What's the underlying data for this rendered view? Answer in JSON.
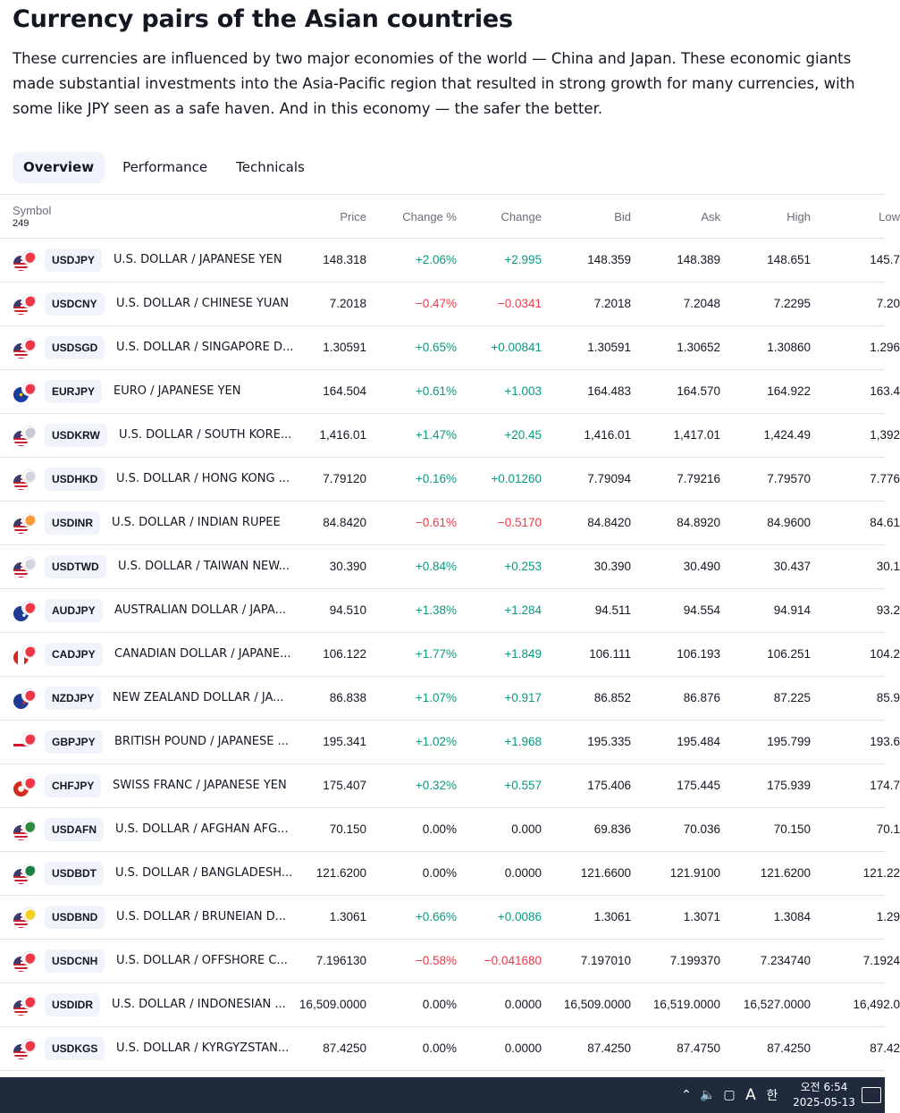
{
  "title": "Currency pairs of the Asian countries",
  "description": "These currencies are influenced by two major economies of the world — China and Japan. These economic giants made substantial investments into the Asia-Pacific region that resulted in strong growth for many currencies, with some like JPY seen as a safe haven. And in this economy — the safer the better.",
  "tabs": [
    "Overview",
    "Performance",
    "Technicals"
  ],
  "active_tab": "Overview",
  "table": {
    "symbol_header": "Symbol",
    "symbol_count": "249",
    "columns": [
      "Price",
      "Change %",
      "Change",
      "Bid",
      "Ask",
      "High",
      "Low"
    ],
    "rows": [
      {
        "symbol": "USDJPY",
        "name": "U.S. DOLLAR / JAPANESE YEN",
        "flags": [
          "usd",
          "jpy"
        ],
        "price": "148.318",
        "change_pct": "+2.06%",
        "change": "+2.995",
        "bid": "148.359",
        "ask": "148.389",
        "high": "148.651",
        "low": "145.7",
        "dir": "pos"
      },
      {
        "symbol": "USDCNY",
        "name": "U.S. DOLLAR / CHINESE YUAN",
        "flags": [
          "usd",
          "cny"
        ],
        "price": "7.2018",
        "change_pct": "−0.47%",
        "change": "−0.0341",
        "bid": "7.2018",
        "ask": "7.2048",
        "high": "7.2295",
        "low": "7.20",
        "dir": "neg"
      },
      {
        "symbol": "USDSGD",
        "name": "U.S. DOLLAR / SINGAPORE D...",
        "flags": [
          "usd",
          "sgd"
        ],
        "price": "1.30591",
        "change_pct": "+0.65%",
        "change": "+0.00841",
        "bid": "1.30591",
        "ask": "1.30652",
        "high": "1.30860",
        "low": "1.296",
        "dir": "pos"
      },
      {
        "symbol": "EURJPY",
        "name": "EURO / JAPANESE YEN",
        "flags": [
          "eur",
          "jpy"
        ],
        "price": "164.504",
        "change_pct": "+0.61%",
        "change": "+1.003",
        "bid": "164.483",
        "ask": "164.570",
        "high": "164.922",
        "low": "163.4",
        "dir": "pos"
      },
      {
        "symbol": "USDKRW",
        "name": "U.S. DOLLAR / SOUTH KORE...",
        "flags": [
          "usd",
          "krw"
        ],
        "price": "1,416.01",
        "change_pct": "+1.47%",
        "change": "+20.45",
        "bid": "1,416.01",
        "ask": "1,417.01",
        "high": "1,424.49",
        "low": "1,392",
        "dir": "pos"
      },
      {
        "symbol": "USDHKD",
        "name": "U.S. DOLLAR / HONG KONG ...",
        "flags": [
          "usd",
          "hkd"
        ],
        "price": "7.79120",
        "change_pct": "+0.16%",
        "change": "+0.01260",
        "bid": "7.79094",
        "ask": "7.79216",
        "high": "7.79570",
        "low": "7.776",
        "dir": "pos"
      },
      {
        "symbol": "USDINR",
        "name": "U.S. DOLLAR / INDIAN RUPEE",
        "flags": [
          "usd",
          "inr"
        ],
        "price": "84.8420",
        "change_pct": "−0.61%",
        "change": "−0.5170",
        "bid": "84.8420",
        "ask": "84.8920",
        "high": "84.9600",
        "low": "84.61",
        "dir": "neg"
      },
      {
        "symbol": "USDTWD",
        "name": "U.S. DOLLAR / TAIWAN NEW...",
        "flags": [
          "usd",
          "twd"
        ],
        "price": "30.390",
        "change_pct": "+0.84%",
        "change": "+0.253",
        "bid": "30.390",
        "ask": "30.490",
        "high": "30.437",
        "low": "30.1",
        "dir": "pos"
      },
      {
        "symbol": "AUDJPY",
        "name": "AUSTRALIAN DOLLAR / JAPA...",
        "flags": [
          "aud",
          "jpy"
        ],
        "price": "94.510",
        "change_pct": "+1.38%",
        "change": "+1.284",
        "bid": "94.511",
        "ask": "94.554",
        "high": "94.914",
        "low": "93.2",
        "dir": "pos"
      },
      {
        "symbol": "CADJPY",
        "name": "CANADIAN DOLLAR / JAPANE...",
        "flags": [
          "cad",
          "jpy"
        ],
        "price": "106.122",
        "change_pct": "+1.77%",
        "change": "+1.849",
        "bid": "106.111",
        "ask": "106.193",
        "high": "106.251",
        "low": "104.2",
        "dir": "pos"
      },
      {
        "symbol": "NZDJPY",
        "name": "NEW ZEALAND DOLLAR / JA...",
        "flags": [
          "nzd",
          "jpy"
        ],
        "price": "86.838",
        "change_pct": "+1.07%",
        "change": "+0.917",
        "bid": "86.852",
        "ask": "86.876",
        "high": "87.225",
        "low": "85.9",
        "dir": "pos"
      },
      {
        "symbol": "GBPJPY",
        "name": "BRITISH POUND / JAPANESE ...",
        "flags": [
          "gbp",
          "jpy"
        ],
        "price": "195.341",
        "change_pct": "+1.02%",
        "change": "+1.968",
        "bid": "195.335",
        "ask": "195.484",
        "high": "195.799",
        "low": "193.6",
        "dir": "pos"
      },
      {
        "symbol": "CHFJPY",
        "name": "SWISS FRANC / JAPANESE YEN",
        "flags": [
          "chf",
          "jpy"
        ],
        "price": "175.407",
        "change_pct": "+0.32%",
        "change": "+0.557",
        "bid": "175.406",
        "ask": "175.445",
        "high": "175.939",
        "low": "174.7",
        "dir": "pos"
      },
      {
        "symbol": "USDAFN",
        "name": "U.S. DOLLAR / AFGHAN AFG...",
        "flags": [
          "usd",
          "afn"
        ],
        "price": "70.150",
        "change_pct": "0.00%",
        "change": "0.000",
        "bid": "69.836",
        "ask": "70.036",
        "high": "70.150",
        "low": "70.1",
        "dir": "flat"
      },
      {
        "symbol": "USDBDT",
        "name": "U.S. DOLLAR / BANGLADESH...",
        "flags": [
          "usd",
          "bdt"
        ],
        "price": "121.6200",
        "change_pct": "0.00%",
        "change": "0.0000",
        "bid": "121.6600",
        "ask": "121.9100",
        "high": "121.6200",
        "low": "121.22",
        "dir": "flat"
      },
      {
        "symbol": "USDBND",
        "name": "U.S. DOLLAR / BRUNEIAN D...",
        "flags": [
          "usd",
          "bnd"
        ],
        "price": "1.3061",
        "change_pct": "+0.66%",
        "change": "+0.0086",
        "bid": "1.3061",
        "ask": "1.3071",
        "high": "1.3084",
        "low": "1.29",
        "dir": "pos"
      },
      {
        "symbol": "USDCNH",
        "name": "U.S. DOLLAR / OFFSHORE C...",
        "flags": [
          "usd",
          "cnh"
        ],
        "price": "7.196130",
        "change_pct": "−0.58%",
        "change": "−0.041680",
        "bid": "7.197010",
        "ask": "7.199370",
        "high": "7.234740",
        "low": "7.1924",
        "dir": "neg"
      },
      {
        "symbol": "USDIDR",
        "name": "U.S. DOLLAR / INDONESIAN ...",
        "flags": [
          "usd",
          "idr"
        ],
        "price": "16,509.0000",
        "change_pct": "0.00%",
        "change": "0.0000",
        "bid": "16,509.0000",
        "ask": "16,519.0000",
        "high": "16,527.0000",
        "low": "16,492.0",
        "dir": "flat"
      },
      {
        "symbol": "USDKGS",
        "name": "U.S. DOLLAR / KYRGYZSTAN...",
        "flags": [
          "usd",
          "kgs"
        ],
        "price": "87.4250",
        "change_pct": "0.00%",
        "change": "0.0000",
        "bid": "87.4250",
        "ask": "87.4750",
        "high": "87.4250",
        "low": "87.42",
        "dir": "flat"
      }
    ]
  },
  "flag_colors": {
    "jpy": "#f23645",
    "cny": "#f23645",
    "sgd": "#f23645",
    "krw": "#c9c9d4",
    "hkd": "#d1d4dc",
    "inr": "#ff9933",
    "twd": "#d1d4dc",
    "afn": "#2e8b3a",
    "bdt": "#1a7f45",
    "bnd": "#f7d117",
    "cnh": "#f23645",
    "idr": "#f23645",
    "kgs": "#f23645"
  },
  "colors": {
    "positive": "#089981",
    "negative": "#f23645",
    "text": "#131722",
    "muted": "#6a6d78"
  },
  "taskbar": {
    "icons": [
      "chevron-up-icon",
      "volume-icon",
      "network-icon"
    ],
    "ime_label": "A",
    "ime_lang": "한",
    "time": "오전 6:54",
    "date": "2025-05-13"
  }
}
